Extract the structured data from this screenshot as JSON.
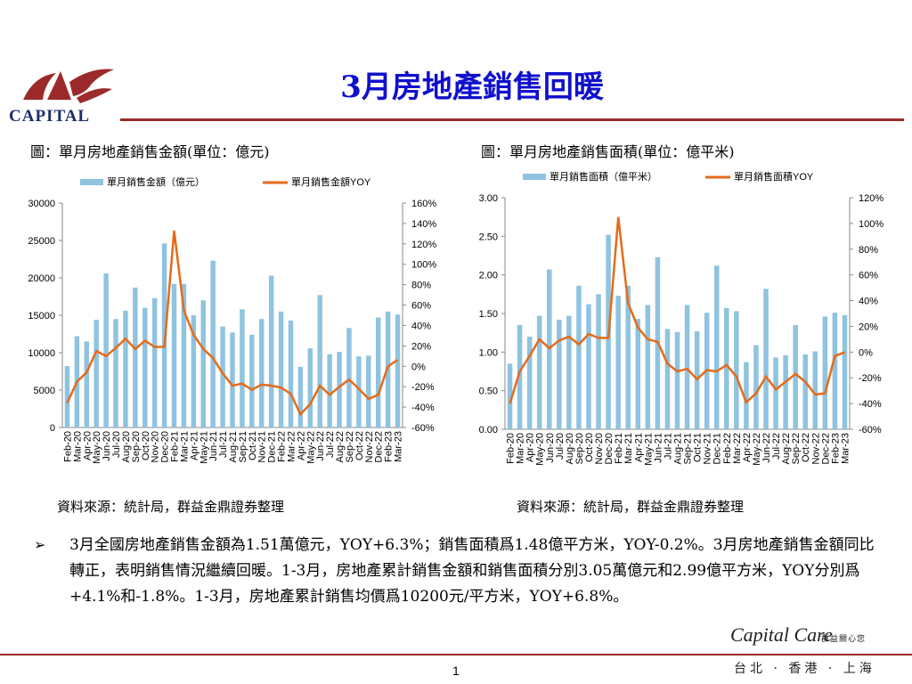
{
  "header": {
    "logo_text": "CAPITAL",
    "title": "3月房地產銷售回暖"
  },
  "colors": {
    "bar": "#8fc3e0",
    "line": "#e46b1a",
    "title": "#1010cc",
    "rule": "#9c2a2a",
    "logo": "#9c2a2a"
  },
  "chart_data": [
    {
      "type": "bar",
      "title": "圖：單月房地產銷售金額(單位：億元)",
      "legend": [
        "單月銷售金額（億元）",
        "單月銷售金額YOY"
      ],
      "categories": [
        "Feb-20",
        "Mar-20",
        "Apr-20",
        "May-20",
        "Jun-20",
        "Jul-20",
        "Aug-20",
        "Sep-20",
        "Oct-20",
        "Nov-20",
        "Dec-20",
        "Feb-21",
        "Mar-21",
        "Apr-21",
        "May-21",
        "Jun-21",
        "Jul-21",
        "Aug-21",
        "Sep-21",
        "Oct-21",
        "Nov-21",
        "Dec-21",
        "Feb-22",
        "Mar-22",
        "Apr-22",
        "May-22",
        "Jun-22",
        "Jul-22",
        "Aug-22",
        "Sep-22",
        "Oct-22",
        "Nov-22",
        "Dec-22",
        "Feb-23",
        "Mar-23"
      ],
      "series": [
        {
          "name": "單月銷售金額（億元）",
          "axis": "left",
          "values": [
            8200,
            12200,
            11500,
            14400,
            20600,
            14500,
            15600,
            18700,
            16000,
            17300,
            24600,
            19200,
            19200,
            15000,
            17000,
            22300,
            13500,
            12700,
            15800,
            12400,
            14500,
            20300,
            15500,
            14300,
            8100,
            10600,
            17700,
            9800,
            10100,
            13300,
            9500,
            9600,
            14700,
            15500,
            15100
          ]
        },
        {
          "name": "單月銷售金額YOY",
          "axis": "right",
          "values": [
            -36,
            -15,
            -6,
            15,
            10,
            18,
            27,
            17,
            25,
            19,
            19,
            133,
            55,
            31,
            17,
            8,
            -7,
            -19,
            -17,
            -23,
            -18,
            -19,
            -21,
            -27,
            -47,
            -37,
            -19,
            -28,
            -20,
            -13,
            -22,
            -32,
            -28,
            0,
            6.3
          ]
        }
      ],
      "ylim_left": [
        0,
        30000
      ],
      "yticks_left": [
        "0",
        "5000",
        "10000",
        "15000",
        "20000",
        "25000",
        "30000"
      ],
      "ylim_right": [
        -60,
        160
      ],
      "yticks_right": [
        "-60%",
        "-40%",
        "-20%",
        "0%",
        "20%",
        "40%",
        "60%",
        "80%",
        "100%",
        "120%",
        "140%",
        "160%"
      ],
      "source": "資料來源：統計局，群益金鼎證券整理"
    },
    {
      "type": "bar",
      "title": "圖：單月房地產銷售面積(單位：億平米)",
      "legend": [
        "單月銷售面積（億平米）",
        "單月銷售面積YOY"
      ],
      "categories": [
        "Feb-20",
        "Mar-20",
        "Apr-20",
        "May-20",
        "Jun-20",
        "Jul-20",
        "Aug-20",
        "Sep-20",
        "Oct-20",
        "Nov-20",
        "Dec-20",
        "Feb-21",
        "Mar-21",
        "Apr-21",
        "May-21",
        "Jun-21",
        "Jul-21",
        "Aug-21",
        "Sep-21",
        "Oct-21",
        "Nov-21",
        "Dec-21",
        "Feb-22",
        "Mar-22",
        "Apr-22",
        "May-22",
        "Jun-22",
        "Jul-22",
        "Aug-22",
        "Sep-22",
        "Oct-22",
        "Nov-22",
        "Dec-22",
        "Feb-23",
        "Mar-23"
      ],
      "series": [
        {
          "name": "單月銷售面積（億平米）",
          "axis": "left",
          "values": [
            0.85,
            1.35,
            1.2,
            1.47,
            2.07,
            1.42,
            1.47,
            1.86,
            1.62,
            1.75,
            2.52,
            1.73,
            1.86,
            1.43,
            1.61,
            2.23,
            1.3,
            1.26,
            1.61,
            1.27,
            1.51,
            2.12,
            1.57,
            1.53,
            0.87,
            1.09,
            1.82,
            0.93,
            0.96,
            1.35,
            0.97,
            1.01,
            1.46,
            1.51,
            1.48
          ]
        },
        {
          "name": "單月銷售面積YOY",
          "axis": "right",
          "values": [
            -40,
            -15,
            -3,
            10,
            3,
            9,
            12,
            6,
            14,
            11,
            11,
            105,
            38,
            19,
            10,
            8,
            -9,
            -15,
            -13,
            -21,
            -14,
            -15,
            -10,
            -19,
            -39,
            -32,
            -19,
            -29,
            -23,
            -17,
            -23,
            -33,
            -32,
            -3,
            -0.2
          ]
        }
      ],
      "ylim_left": [
        0,
        3
      ],
      "yticks_left": [
        "0.00",
        "0.50",
        "1.00",
        "1.50",
        "2.00",
        "2.50",
        "3.00"
      ],
      "ylim_right": [
        -60,
        120
      ],
      "yticks_right": [
        "-60%",
        "-40%",
        "-20%",
        "0%",
        "20%",
        "40%",
        "60%",
        "80%",
        "100%",
        "120%"
      ],
      "source": "資料來源：統計局，群益金鼎證券整理"
    }
  ],
  "body": {
    "bullet": "➢",
    "text": "3月全國房地產銷售金額為1.51萬億元，YOY+6.3%；銷售面積爲1.48億平方米，YOY-0.2%。3月房地產銷售金額同比轉正，表明銷售情況繼續回暖。1-3月，房地產累計銷售金額和銷售面積分別3.05萬億元和2.99億平方米，YOY分別爲+4.1%和-1.8%。1-3月，房地產累計銷售均價爲10200元/平方米，YOY+6.8%。"
  },
  "footer": {
    "brand": "Capital Care",
    "tagline": "群益關心您",
    "cities": "台北 · 香港 · 上海",
    "page_number": "1"
  }
}
